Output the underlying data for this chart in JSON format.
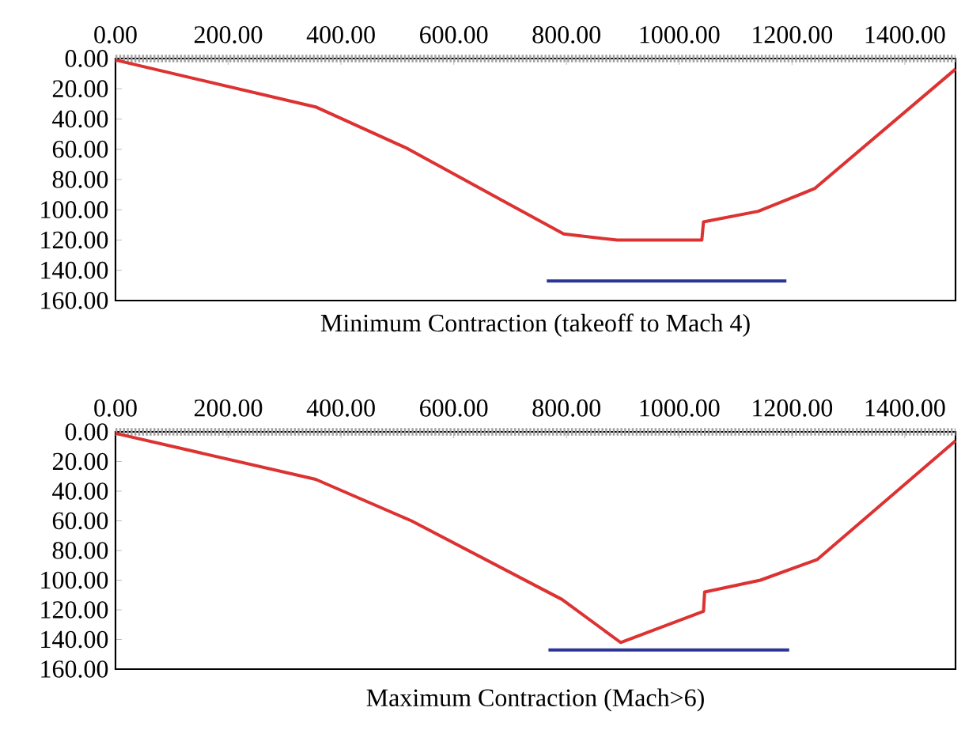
{
  "chart_data": [
    {
      "type": "line",
      "title": "Minimum Contraction (takeoff to Mach 4)",
      "xlim": [
        0,
        1490
      ],
      "ylim": [
        160,
        0
      ],
      "marker": "none",
      "grid": false,
      "xticks": [
        {
          "value": 0,
          "label": "0.00"
        },
        {
          "value": 200,
          "label": "200.00"
        },
        {
          "value": 400,
          "label": "400.00"
        },
        {
          "value": 600,
          "label": "600.00"
        },
        {
          "value": 800,
          "label": "800.00"
        },
        {
          "value": 1000,
          "label": "1000.00"
        },
        {
          "value": 1200,
          "label": "1200.00"
        },
        {
          "value": 1400,
          "label": "1400.00"
        }
      ],
      "yticks": [
        {
          "value": 0,
          "label": "0.00"
        },
        {
          "value": 20,
          "label": "20.00"
        },
        {
          "value": 40,
          "label": "40.00"
        },
        {
          "value": 60,
          "label": "60.00"
        },
        {
          "value": 80,
          "label": "80.00"
        },
        {
          "value": 100,
          "label": "100.00"
        },
        {
          "value": 120,
          "label": "120.00"
        },
        {
          "value": 140,
          "label": "140.00"
        },
        {
          "value": 160,
          "label": "160.00"
        }
      ],
      "ref_lines": [
        {
          "axis": "y",
          "value": 0,
          "color": "#a0a0a0",
          "line_style": "dotted"
        }
      ],
      "series": [
        {
          "color": "#dc3232",
          "x": [
            0,
            355,
            515,
            795,
            890,
            1040,
            1043,
            1140,
            1240,
            1490
          ],
          "values": [
            1,
            32,
            59,
            116,
            120,
            120,
            108,
            101,
            86,
            7
          ]
        },
        {
          "color": "#2a3596",
          "x": [
            765,
            1190
          ],
          "values": [
            147,
            147
          ]
        }
      ]
    },
    {
      "type": "line",
      "title": "Maximum Contraction (Mach>6)",
      "xlim": [
        0,
        1490
      ],
      "ylim": [
        160,
        0
      ],
      "marker": "none",
      "grid": false,
      "xticks": [
        {
          "value": 0,
          "label": "0.00"
        },
        {
          "value": 200,
          "label": "200.00"
        },
        {
          "value": 400,
          "label": "400.00"
        },
        {
          "value": 600,
          "label": "600.00"
        },
        {
          "value": 800,
          "label": "800.00"
        },
        {
          "value": 1000,
          "label": "1000.00"
        },
        {
          "value": 1200,
          "label": "1200.00"
        },
        {
          "value": 1400,
          "label": "1400.00"
        }
      ],
      "yticks": [
        {
          "value": 0,
          "label": "0.00"
        },
        {
          "value": 20,
          "label": "20.00"
        },
        {
          "value": 40,
          "label": "40.00"
        },
        {
          "value": 60,
          "label": "60.00"
        },
        {
          "value": 80,
          "label": "80.00"
        },
        {
          "value": 100,
          "label": "100.00"
        },
        {
          "value": 120,
          "label": "120.00"
        },
        {
          "value": 140,
          "label": "140.00"
        },
        {
          "value": 160,
          "label": "160.00"
        }
      ],
      "ref_lines": [
        {
          "axis": "y",
          "value": 0,
          "color": "#a0a0a0",
          "line_style": "dotted"
        }
      ],
      "series": [
        {
          "color": "#dc3232",
          "x": [
            0,
            355,
            525,
            792,
            896,
            1043,
            1045,
            1144,
            1245,
            1490
          ],
          "values": [
            1,
            32,
            60,
            113,
            142,
            121,
            108,
            100,
            86,
            6
          ]
        },
        {
          "color": "#2a3596",
          "x": [
            768,
            1195
          ],
          "values": [
            147,
            147
          ]
        }
      ]
    }
  ]
}
